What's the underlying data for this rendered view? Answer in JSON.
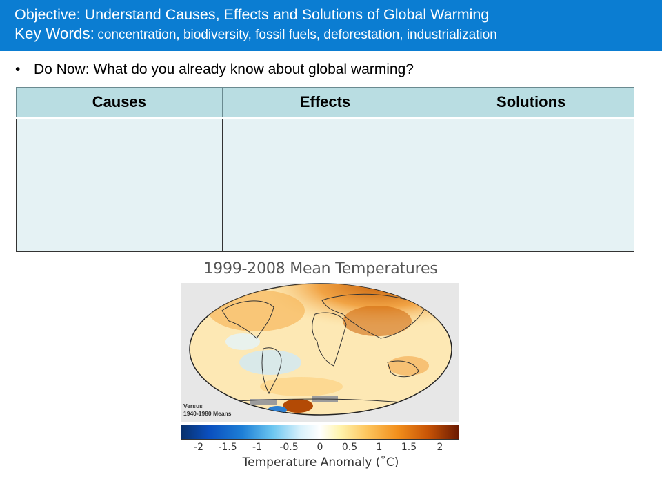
{
  "header": {
    "objective": "Objective: Understand Causes, Effects and Solutions of Global Warming",
    "key_words_label": "Key Words:",
    "key_words": "concentration, biodiversity, fossil fuels, deforestation, industrialization"
  },
  "do_now": {
    "bullet": "•",
    "text": "Do Now: What do you already know about global warming?"
  },
  "table": {
    "headers": [
      "Causes",
      "Effects",
      "Solutions"
    ]
  },
  "figure": {
    "title": "1999-2008 Mean Temperatures",
    "versus_line1": "Versus",
    "versus_line2": "1940-1980 Means",
    "scale_ticks": [
      "-2",
      "-1.5",
      "-1",
      "-0.5",
      "0",
      "0.5",
      "1",
      "1.5",
      "2"
    ],
    "scale_label": "Temperature Anomaly (˚C)",
    "colors": {
      "cold": "#08306b",
      "neutral": "#ffffff",
      "warm": "#6b1a02"
    }
  },
  "colors": {
    "header_bg": "#0b7dd2",
    "table_header": "#b9dde2",
    "table_cell": "#e5f2f4"
  }
}
